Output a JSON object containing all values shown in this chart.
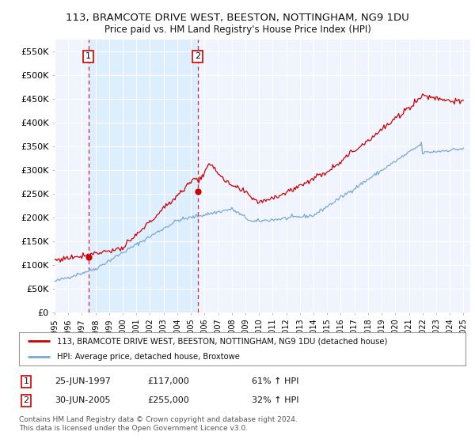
{
  "title": "113, BRAMCOTE DRIVE WEST, BEESTON, NOTTINGHAM, NG9 1DU",
  "subtitle": "Price paid vs. HM Land Registry's House Price Index (HPI)",
  "ylim": [
    0,
    575000
  ],
  "yticks": [
    0,
    50000,
    100000,
    150000,
    200000,
    250000,
    300000,
    350000,
    400000,
    450000,
    500000,
    550000
  ],
  "ytick_labels": [
    "£0",
    "£50K",
    "£100K",
    "£150K",
    "£200K",
    "£250K",
    "£300K",
    "£350K",
    "£400K",
    "£450K",
    "£500K",
    "£550K"
  ],
  "sale1_year": 1997.48,
  "sale1_price": 117000,
  "sale2_year": 2005.5,
  "sale2_price": 255000,
  "legend_red": "113, BRAMCOTE DRIVE WEST, BEESTON, NOTTINGHAM, NG9 1DU (detached house)",
  "legend_blue": "HPI: Average price, detached house, Broxtowe",
  "annotation1": [
    "1",
    "25-JUN-1997",
    "£117,000",
    "61% ↑ HPI"
  ],
  "annotation2": [
    "2",
    "30-JUN-2005",
    "£255,000",
    "32% ↑ HPI"
  ],
  "footnote": "Contains HM Land Registry data © Crown copyright and database right 2024.\nThis data is licensed under the Open Government Licence v3.0.",
  "red_color": "#cc0000",
  "blue_color": "#7aa8d2",
  "shade_color": "#ddeeff",
  "bg_color": "#ffffff",
  "plot_bg": "#f0f4ff",
  "grid_color": "#ffffff",
  "xlim_start": 1995,
  "xlim_end": 2025.5
}
